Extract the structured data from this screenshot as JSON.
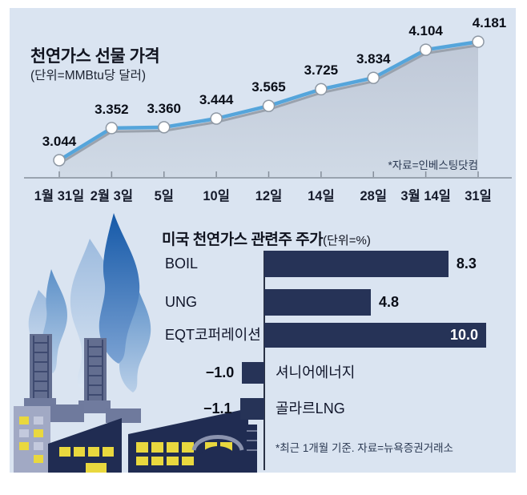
{
  "colors": {
    "panel_bg": "#dae4f1",
    "line_blue": "#55a5db",
    "line_shadow": "#9aa2ad",
    "marker_stroke": "#8e98a4",
    "area_top": "#bfc8d7",
    "area_bottom": "#d0dae6",
    "axis_gray": "#858e9a",
    "bar_navy": "#263357",
    "factory_navy": "#202c52",
    "window_yellow": "#e9d83e",
    "value_text": "#0a0e18",
    "source_text": "#2b3952"
  },
  "chart_data": [
    {
      "type": "line",
      "title": "천연가스 선물 가격",
      "subtitle": "(단위=MMBtu당 달러)",
      "source": "*자료=인베스팅닷컴",
      "x": [
        "1월 31일",
        "2월 3일",
        "5일",
        "10일",
        "12일",
        "14일",
        "28일",
        "3월 14일",
        "31일"
      ],
      "values": [
        3.044,
        3.352,
        3.36,
        3.444,
        3.565,
        3.725,
        3.834,
        4.104,
        4.181
      ],
      "labels": [
        "3.044",
        "3.352",
        "3.360",
        "3.444",
        "3.565",
        "3.725",
        "3.834",
        "4.104",
        "4.181"
      ],
      "ylim": [
        3.0,
        4.35
      ],
      "grid": false,
      "marker": "circle",
      "area": true,
      "legend": "none"
    },
    {
      "type": "bar",
      "orientation": "horizontal",
      "title": "미국 천연가스 관련주 주가",
      "unit_label": "(단위=%)",
      "categories": [
        "BOIL",
        "UNG",
        "EQT코퍼레이션",
        "셔니어에너지",
        "골라르LNG"
      ],
      "values": [
        8.3,
        4.8,
        10.0,
        -1.0,
        -1.1
      ],
      "labels": [
        "8.3",
        "4.8",
        "10.0",
        "−1.0",
        "−1.1"
      ],
      "xlim": [
        -2,
        10.5
      ],
      "grid": false,
      "footnote": "*최근 1개월 기준. 자료=뉴욕증권거래소",
      "legend": "none"
    }
  ]
}
